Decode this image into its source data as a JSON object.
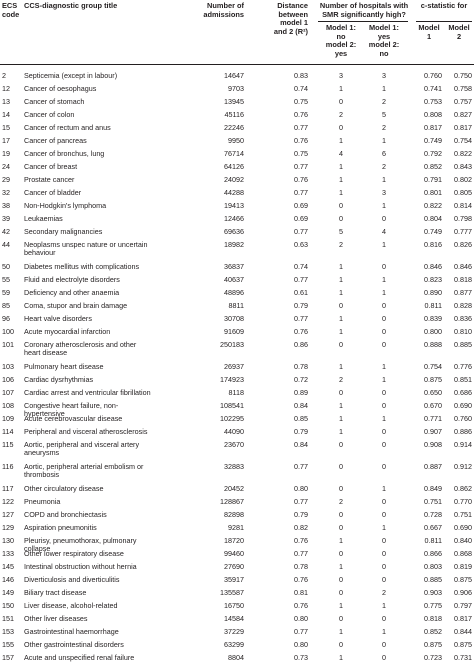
{
  "header": {
    "col_code": "ECS\ncode",
    "col_title": "CCS-diagnostic group title",
    "col_admissions": "Number of\nadmissions",
    "col_distance": "Distance\nbetween\nmodel 1\nand 2 (R²)",
    "col_hospitals_group": "Number of hospitals with\nSMR significantly high?",
    "col_m1no_m2yes": "Model 1:\nno\nmodel 2:\nyes",
    "col_m1yes_m2no": "Model 1:\nyes\nmodel 2:\nno",
    "col_cstat_group": "c-statistic for",
    "col_model1": "Model\n1",
    "col_model2": "Model\n2"
  },
  "rows": [
    {
      "code": "2",
      "title": "Septicemia (except in labour)",
      "admissions": "14647",
      "distance": "0.83",
      "m1no_m2yes": "3",
      "m1yes_m2no": "3",
      "c1": "0.760",
      "c2": "0.750"
    },
    {
      "code": "12",
      "title": "Cancer of oesophagus",
      "admissions": "9703",
      "distance": "0.74",
      "m1no_m2yes": "1",
      "m1yes_m2no": "1",
      "c1": "0.741",
      "c2": "0.758"
    },
    {
      "code": "13",
      "title": "Cancer of stomach",
      "admissions": "13945",
      "distance": "0.75",
      "m1no_m2yes": "0",
      "m1yes_m2no": "2",
      "c1": "0.753",
      "c2": "0.757"
    },
    {
      "code": "14",
      "title": "Cancer of colon",
      "admissions": "45116",
      "distance": "0.76",
      "m1no_m2yes": "2",
      "m1yes_m2no": "5",
      "c1": "0.808",
      "c2": "0.827"
    },
    {
      "code": "15",
      "title": "Cancer of rectum and anus",
      "admissions": "22246",
      "distance": "0.77",
      "m1no_m2yes": "0",
      "m1yes_m2no": "2",
      "c1": "0.817",
      "c2": "0.817"
    },
    {
      "code": "17",
      "title": "Cancer of pancreas",
      "admissions": "9950",
      "distance": "0.76",
      "m1no_m2yes": "1",
      "m1yes_m2no": "1",
      "c1": "0.749",
      "c2": "0.754"
    },
    {
      "code": "19",
      "title": "Cancer of bronchus, lung",
      "admissions": "76714",
      "distance": "0.75",
      "m1no_m2yes": "4",
      "m1yes_m2no": "6",
      "c1": "0.792",
      "c2": "0.822"
    },
    {
      "code": "24",
      "title": "Cancer of breast",
      "admissions": "64126",
      "distance": "0.77",
      "m1no_m2yes": "1",
      "m1yes_m2no": "2",
      "c1": "0.852",
      "c2": "0.843"
    },
    {
      "code": "29",
      "title": "Prostate cancer",
      "admissions": "24092",
      "distance": "0.76",
      "m1no_m2yes": "1",
      "m1yes_m2no": "1",
      "c1": "0.791",
      "c2": "0.802"
    },
    {
      "code": "32",
      "title": "Cancer of bladder",
      "admissions": "44288",
      "distance": "0.77",
      "m1no_m2yes": "1",
      "m1yes_m2no": "3",
      "c1": "0.801",
      "c2": "0.805"
    },
    {
      "code": "38",
      "title": "Non-Hodgkin's lymphoma",
      "admissions": "19413",
      "distance": "0.69",
      "m1no_m2yes": "0",
      "m1yes_m2no": "1",
      "c1": "0.822",
      "c2": "0.814"
    },
    {
      "code": "39",
      "title": "Leukaemias",
      "admissions": "12466",
      "distance": "0.69",
      "m1no_m2yes": "0",
      "m1yes_m2no": "0",
      "c1": "0.804",
      "c2": "0.798"
    },
    {
      "code": "42",
      "title": "Secondary malignancies",
      "admissions": "69636",
      "distance": "0.77",
      "m1no_m2yes": "5",
      "m1yes_m2no": "4",
      "c1": "0.749",
      "c2": "0.777"
    },
    {
      "code": "44",
      "title": "Neoplasms unspec nature or uncertain behaviour",
      "admissions": "18982",
      "distance": "0.63",
      "m1no_m2yes": "2",
      "m1yes_m2no": "1",
      "c1": "0.816",
      "c2": "0.826"
    },
    {
      "code": "50",
      "title": "Diabetes mellitus with complications",
      "admissions": "36837",
      "distance": "0.74",
      "m1no_m2yes": "1",
      "m1yes_m2no": "0",
      "c1": "0.846",
      "c2": "0.846"
    },
    {
      "code": "55",
      "title": "Fluid and electrolyte disorders",
      "admissions": "40637",
      "distance": "0.77",
      "m1no_m2yes": "1",
      "m1yes_m2no": "1",
      "c1": "0.823",
      "c2": "0.818"
    },
    {
      "code": "59",
      "title": "Deficiency and other anaemia",
      "admissions": "48896",
      "distance": "0.61",
      "m1no_m2yes": "1",
      "m1yes_m2no": "1",
      "c1": "0.890",
      "c2": "0.877"
    },
    {
      "code": "85",
      "title": "Coma, stupor and brain damage",
      "admissions": "8811",
      "distance": "0.79",
      "m1no_m2yes": "0",
      "m1yes_m2no": "0",
      "c1": "0.811",
      "c2": "0.828"
    },
    {
      "code": "96",
      "title": "Heart valve disorders",
      "admissions": "30708",
      "distance": "0.77",
      "m1no_m2yes": "1",
      "m1yes_m2no": "0",
      "c1": "0.839",
      "c2": "0.836"
    },
    {
      "code": "100",
      "title": "Acute myocardial infarction",
      "admissions": "91609",
      "distance": "0.76",
      "m1no_m2yes": "1",
      "m1yes_m2no": "0",
      "c1": "0.800",
      "c2": "0.810"
    },
    {
      "code": "101",
      "title": "Coronary atherosclerosis and other heart disease",
      "admissions": "250183",
      "distance": "0.86",
      "m1no_m2yes": "0",
      "m1yes_m2no": "0",
      "c1": "0.888",
      "c2": "0.885"
    },
    {
      "code": "103",
      "title": "Pulmonary heart disease",
      "admissions": "26937",
      "distance": "0.78",
      "m1no_m2yes": "1",
      "m1yes_m2no": "1",
      "c1": "0.754",
      "c2": "0.776"
    },
    {
      "code": "106",
      "title": "Cardiac dysrhythmias",
      "admissions": "174923",
      "distance": "0.72",
      "m1no_m2yes": "2",
      "m1yes_m2no": "1",
      "c1": "0.875",
      "c2": "0.851"
    },
    {
      "code": "107",
      "title": "Cardiac arrest and ventricular fibrillation",
      "admissions": "8118",
      "distance": "0.89",
      "m1no_m2yes": "0",
      "m1yes_m2no": "0",
      "c1": "0.650",
      "c2": "0.686"
    },
    {
      "code": "108",
      "title": "Congestive heart failure, non-hypertensive",
      "admissions": "108541",
      "distance": "0.84",
      "m1no_m2yes": "1",
      "m1yes_m2no": "0",
      "c1": "0.670",
      "c2": "0.690"
    },
    {
      "code": "109",
      "title": "Acute cerebrovascular disease",
      "admissions": "102295",
      "distance": "0.85",
      "m1no_m2yes": "1",
      "m1yes_m2no": "1",
      "c1": "0.771",
      "c2": "0.760"
    },
    {
      "code": "114",
      "title": "Peripheral and visceral atherosclerosis",
      "admissions": "44090",
      "distance": "0.79",
      "m1no_m2yes": "1",
      "m1yes_m2no": "0",
      "c1": "0.907",
      "c2": "0.886"
    },
    {
      "code": "115",
      "title": "Aortic, peripheral and visceral artery aneurysms",
      "admissions": "23670",
      "distance": "0.84",
      "m1no_m2yes": "0",
      "m1yes_m2no": "0",
      "c1": "0.908",
      "c2": "0.914"
    },
    {
      "code": "116",
      "title": "Aortic, peripheral arterial embolism or thrombosis",
      "admissions": "32883",
      "distance": "0.77",
      "m1no_m2yes": "0",
      "m1yes_m2no": "0",
      "c1": "0.887",
      "c2": "0.912"
    },
    {
      "code": "117",
      "title": "Other circulatory disease",
      "admissions": "20452",
      "distance": "0.80",
      "m1no_m2yes": "0",
      "m1yes_m2no": "1",
      "c1": "0.849",
      "c2": "0.862"
    },
    {
      "code": "122",
      "title": "Pneumonia",
      "admissions": "128867",
      "distance": "0.77",
      "m1no_m2yes": "2",
      "m1yes_m2no": "0",
      "c1": "0.751",
      "c2": "0.770"
    },
    {
      "code": "127",
      "title": "COPD and bronchiectasis",
      "admissions": "82898",
      "distance": "0.79",
      "m1no_m2yes": "0",
      "m1yes_m2no": "0",
      "c1": "0.728",
      "c2": "0.751"
    },
    {
      "code": "129",
      "title": "Aspiration pneumonitis",
      "admissions": "9281",
      "distance": "0.82",
      "m1no_m2yes": "0",
      "m1yes_m2no": "1",
      "c1": "0.667",
      "c2": "0.690"
    },
    {
      "code": "130",
      "title": "Pleurisy, pneumothorax, pulmonary collapse",
      "admissions": "18720",
      "distance": "0.76",
      "m1no_m2yes": "1",
      "m1yes_m2no": "0",
      "c1": "0.811",
      "c2": "0.840"
    },
    {
      "code": "133",
      "title": "Other lower respiratory disease",
      "admissions": "99460",
      "distance": "0.77",
      "m1no_m2yes": "0",
      "m1yes_m2no": "0",
      "c1": "0.866",
      "c2": "0.868"
    },
    {
      "code": "145",
      "title": "Intestinal obstruction without hernia",
      "admissions": "27690",
      "distance": "0.78",
      "m1no_m2yes": "1",
      "m1yes_m2no": "0",
      "c1": "0.803",
      "c2": "0.819"
    },
    {
      "code": "146",
      "title": "Diverticulosis and diverticulitis",
      "admissions": "35917",
      "distance": "0.76",
      "m1no_m2yes": "0",
      "m1yes_m2no": "0",
      "c1": "0.885",
      "c2": "0.875"
    },
    {
      "code": "149",
      "title": "Biliary tract disease",
      "admissions": "135587",
      "distance": "0.81",
      "m1no_m2yes": "0",
      "m1yes_m2no": "2",
      "c1": "0.903",
      "c2": "0.906"
    },
    {
      "code": "150",
      "title": "Liver disease, alcohol-related",
      "admissions": "16750",
      "distance": "0.76",
      "m1no_m2yes": "1",
      "m1yes_m2no": "1",
      "c1": "0.775",
      "c2": "0.797"
    },
    {
      "code": "151",
      "title": "Other liver diseases",
      "admissions": "14584",
      "distance": "0.80",
      "m1no_m2yes": "0",
      "m1yes_m2no": "0",
      "c1": "0.818",
      "c2": "0.817"
    },
    {
      "code": "153",
      "title": "Gastrointestinal haemorrhage",
      "admissions": "37229",
      "distance": "0.77",
      "m1no_m2yes": "1",
      "m1yes_m2no": "1",
      "c1": "0.852",
      "c2": "0.844"
    },
    {
      "code": "155",
      "title": "Other gastrointestinal disorders",
      "admissions": "63299",
      "distance": "0.80",
      "m1no_m2yes": "0",
      "m1yes_m2no": "0",
      "c1": "0.875",
      "c2": "0.875"
    },
    {
      "code": "157",
      "title": "Acute and unspecified renal failure",
      "admissions": "8804",
      "distance": "0.73",
      "m1no_m2yes": "1",
      "m1yes_m2no": "0",
      "c1": "0.723",
      "c2": "0.731"
    }
  ]
}
